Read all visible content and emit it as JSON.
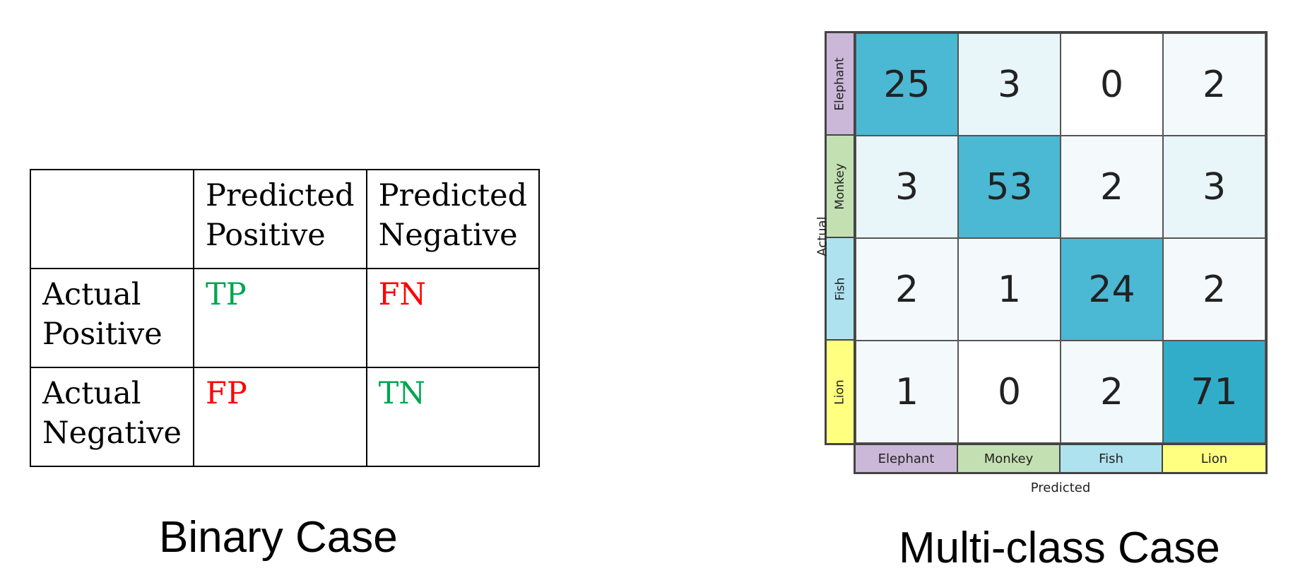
{
  "binary": {
    "header": {
      "corner": "",
      "pred_pos_line1": "Predicted",
      "pred_pos_line2": "Positive",
      "pred_neg_line1": "Predicted",
      "pred_neg_line2": "Negative"
    },
    "rows": [
      {
        "label_line1": "Actual",
        "label_line2": "Positive",
        "cells": [
          "TP",
          "FN"
        ]
      },
      {
        "label_line1": "Actual",
        "label_line2": "Negative",
        "cells": [
          "FP",
          "TN"
        ]
      }
    ],
    "colors": {
      "correct": "#00a550",
      "error": "#ff0000"
    },
    "caption": "Binary Case"
  },
  "multiclass": {
    "classes": [
      "Elephant",
      "Monkey",
      "Fish",
      "Lion"
    ],
    "class_colors": [
      "#cbb8d8",
      "#c3e0b2",
      "#ade2ee",
      "#ffff80"
    ],
    "matrix": [
      [
        25,
        3,
        0,
        2
      ],
      [
        3,
        53,
        2,
        3
      ],
      [
        2,
        1,
        24,
        2
      ],
      [
        1,
        0,
        2,
        71
      ]
    ],
    "heat_colors": {
      "high": "#4bb8d4",
      "highest": "#32adc9",
      "low": "#e8f5f9",
      "lower": "#f4fafb",
      "zero": "#ffffff"
    },
    "axis_actual": "Actual",
    "axis_predicted": "Predicted",
    "caption": "Multi-class Case"
  }
}
